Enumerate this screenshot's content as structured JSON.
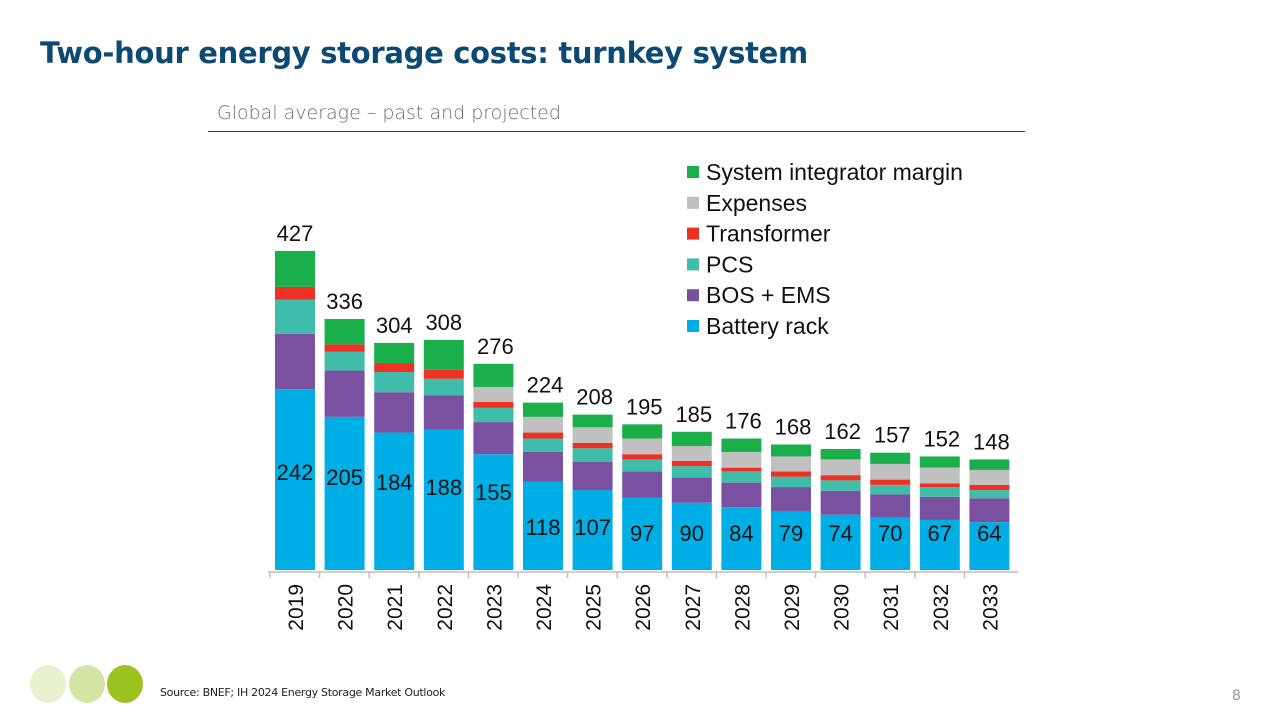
{
  "slide": {
    "title": "Two-hour energy storage costs: turnkey system",
    "subtitle": "Global average – past and projected",
    "source": "Source: BNEF; IH 2024 Energy Storage Market Outlook",
    "page_number": "8",
    "dot_colors": [
      "#e8f2d0",
      "#d3e5a4",
      "#9cc31f"
    ]
  },
  "chart_data": {
    "type": "bar",
    "stacked": true,
    "title": "Two-hour energy storage costs: turnkey system",
    "subtitle": "Global average – past and projected",
    "xlabel": "",
    "ylabel": "",
    "ylim": [
      0,
      427
    ],
    "grid": false,
    "legend_position": "top-right",
    "categories": [
      "2019",
      "2020",
      "2021",
      "2022",
      "2023",
      "2024",
      "2025",
      "2026",
      "2027",
      "2028",
      "2029",
      "2030",
      "2031",
      "2032",
      "2033"
    ],
    "totals": [
      427,
      336,
      304,
      308,
      276,
      224,
      208,
      195,
      185,
      176,
      168,
      162,
      157,
      152,
      148
    ],
    "series": [
      {
        "name": "Battery rack",
        "color": "#00aee6",
        "values": [
          242,
          205,
          184,
          188,
          155,
          118,
          107,
          97,
          90,
          84,
          79,
          74,
          70,
          67,
          64
        ],
        "labeled": true
      },
      {
        "name": "BOS + EMS",
        "color": "#7a51a1",
        "values": [
          74,
          62,
          54,
          46,
          43,
          40,
          38,
          35,
          34,
          33,
          32,
          32,
          31,
          31,
          32
        ]
      },
      {
        "name": "PCS",
        "color": "#3fbcaa",
        "values": [
          46,
          25,
          27,
          22,
          19,
          18,
          18,
          16,
          15,
          15,
          14,
          14,
          13,
          13,
          11
        ]
      },
      {
        "name": "Transformer",
        "color": "#ee3124",
        "values": [
          17,
          10,
          12,
          12,
          8,
          8,
          7,
          7,
          7,
          5,
          7,
          7,
          7,
          5,
          7
        ]
      },
      {
        "name": "Expenses",
        "color": "#c0c0c0",
        "values": [
          0,
          0,
          0,
          0,
          20,
          21,
          21,
          21,
          20,
          21,
          20,
          21,
          21,
          21,
          20
        ]
      },
      {
        "name": "System integrator margin",
        "color": "#1aaf4b",
        "values": [
          48,
          34,
          27,
          40,
          31,
          19,
          17,
          19,
          19,
          18,
          16,
          14,
          15,
          15,
          14
        ]
      }
    ],
    "legend": [
      "System integrator margin",
      "Expenses",
      "Transformer",
      "PCS",
      "BOS + EMS",
      "Battery rack"
    ]
  }
}
